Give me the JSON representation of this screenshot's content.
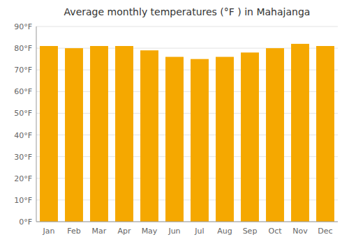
{
  "chart_data": {
    "type": "bar",
    "title": "Average monthly temperatures (°F ) in Mahajanga",
    "categories": [
      "Jan",
      "Feb",
      "Mar",
      "Apr",
      "May",
      "Jun",
      "Jul",
      "Aug",
      "Sep",
      "Oct",
      "Nov",
      "Dec"
    ],
    "values": [
      81,
      80,
      81,
      81,
      79,
      76,
      75,
      76,
      78,
      80,
      82,
      81
    ],
    "color": "#F5A800",
    "ylim": [
      0,
      90
    ],
    "yticks": [
      {
        "value": 0,
        "label": "0°F"
      },
      {
        "value": 10,
        "label": "10°F"
      },
      {
        "value": 20,
        "label": "20°F"
      },
      {
        "value": 30,
        "label": "30°F"
      },
      {
        "value": 40,
        "label": "40°F"
      },
      {
        "value": 50,
        "label": "50°F"
      },
      {
        "value": 60,
        "label": "60°F"
      },
      {
        "value": 70,
        "label": "70°F"
      },
      {
        "value": 80,
        "label": "80°F"
      },
      {
        "value": 90,
        "label": "90°F"
      }
    ],
    "grid": true
  }
}
